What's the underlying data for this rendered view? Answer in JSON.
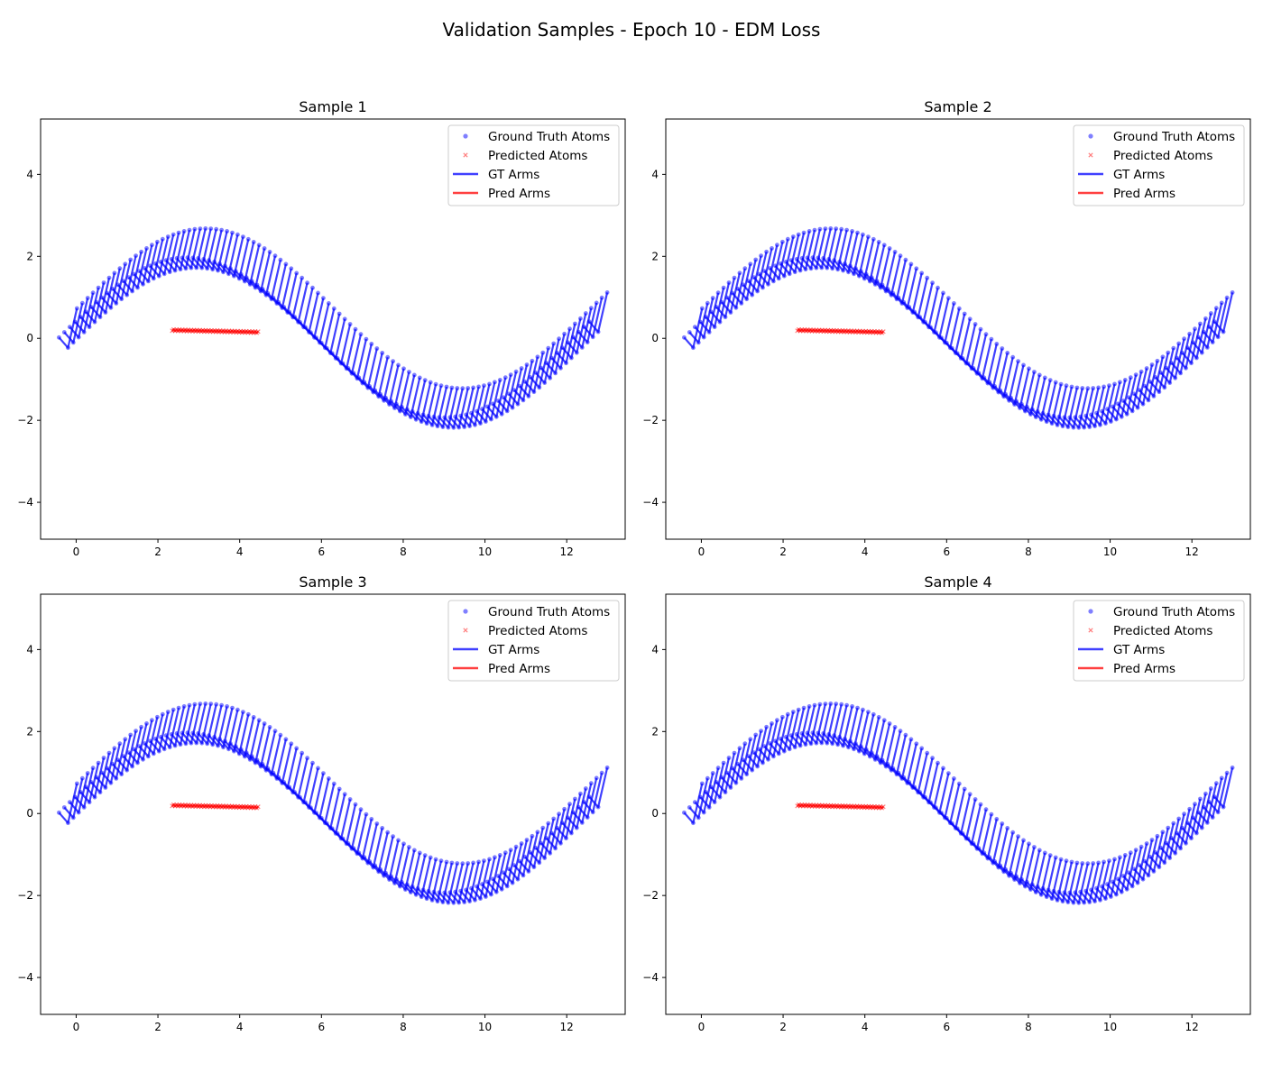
{
  "figure": {
    "title": "Validation Samples - Epoch 10 - EDM Loss"
  },
  "legend": {
    "entries": [
      {
        "label": "Ground Truth Atoms",
        "kind": "scatter-dot",
        "color": "#0000ff"
      },
      {
        "label": "Predicted Atoms",
        "kind": "scatter-x",
        "color": "#ff0000"
      },
      {
        "label": "GT Arms",
        "kind": "line",
        "color": "#0000ff"
      },
      {
        "label": "Pred Arms",
        "kind": "line",
        "color": "#ff0000"
      }
    ],
    "placement": "upper-right"
  },
  "colors": {
    "gt": "#0000ff",
    "pred": "#ff0000",
    "axes": "#000000"
  },
  "chart_data": [
    {
      "type": "scatter",
      "title": "Sample 1",
      "xlim": [
        -0.87,
        13.43
      ],
      "ylim": [
        -4.9,
        5.35
      ],
      "xticks": [
        0,
        2,
        4,
        6,
        8,
        10,
        12
      ],
      "yticks": [
        -4,
        -2,
        0,
        2,
        4
      ],
      "grid": false,
      "gt": {
        "x_start": -0.2,
        "x_end": 12.77,
        "centers": 100,
        "amplitude": 1.95,
        "offset": 0.25,
        "period": 12.57,
        "arm_dx": 0.22,
        "arm_dy": 0.48
      },
      "pred": {
        "x_start": 2.35,
        "x_end": 4.45,
        "count": 60,
        "y_start": 0.2,
        "y_end": 0.15
      }
    },
    {
      "type": "scatter",
      "title": "Sample 2",
      "xlim": [
        -0.87,
        13.43
      ],
      "ylim": [
        -4.9,
        5.35
      ],
      "xticks": [
        0,
        2,
        4,
        6,
        8,
        10,
        12
      ],
      "yticks": [
        -4,
        -2,
        0,
        2,
        4
      ],
      "grid": false,
      "gt": {
        "x_start": -0.2,
        "x_end": 12.77,
        "centers": 100,
        "amplitude": 1.95,
        "offset": 0.25,
        "period": 12.57,
        "arm_dx": 0.22,
        "arm_dy": 0.48
      },
      "pred": {
        "x_start": 2.35,
        "x_end": 4.45,
        "count": 60,
        "y_start": 0.2,
        "y_end": 0.15
      }
    },
    {
      "type": "scatter",
      "title": "Sample 3",
      "xlim": [
        -0.87,
        13.43
      ],
      "ylim": [
        -4.9,
        5.35
      ],
      "xticks": [
        0,
        2,
        4,
        6,
        8,
        10,
        12
      ],
      "yticks": [
        -4,
        -2,
        0,
        2,
        4
      ],
      "grid": false,
      "gt": {
        "x_start": -0.2,
        "x_end": 12.77,
        "centers": 100,
        "amplitude": 1.95,
        "offset": 0.25,
        "period": 12.57,
        "arm_dx": 0.22,
        "arm_dy": 0.48
      },
      "pred": {
        "x_start": 2.35,
        "x_end": 4.45,
        "count": 60,
        "y_start": 0.2,
        "y_end": 0.15
      }
    },
    {
      "type": "scatter",
      "title": "Sample 4",
      "xlim": [
        -0.87,
        13.43
      ],
      "ylim": [
        -4.9,
        5.35
      ],
      "xticks": [
        0,
        2,
        4,
        6,
        8,
        10,
        12
      ],
      "yticks": [
        -4,
        -2,
        0,
        2,
        4
      ],
      "grid": false,
      "gt": {
        "x_start": -0.2,
        "x_end": 12.77,
        "centers": 100,
        "amplitude": 1.95,
        "offset": 0.25,
        "period": 12.57,
        "arm_dx": 0.22,
        "arm_dy": 0.48
      },
      "pred": {
        "x_start": 2.35,
        "x_end": 4.45,
        "count": 60,
        "y_start": 0.2,
        "y_end": 0.15
      }
    }
  ]
}
